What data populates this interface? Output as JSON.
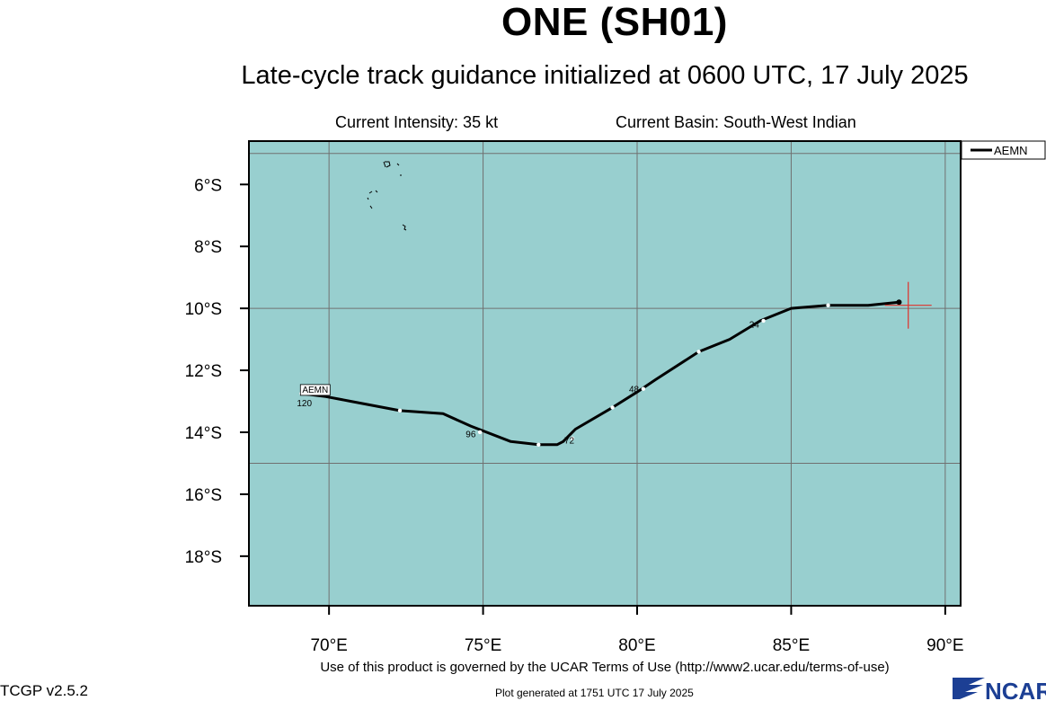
{
  "header": {
    "title": "ONE (SH01)",
    "subtitle": "Late-cycle track guidance initialized at 0600 UTC, 17 July 2025",
    "intensity": "Current Intensity: 35 kt",
    "basin": "Current Basin: South-West Indian"
  },
  "footer": {
    "terms": "Use of this product is governed by the UCAR Terms of Use (http://www2.ucar.edu/terms-of-use)",
    "version": "TCGP v2.5.2",
    "generated": "Plot generated at 1751 UTC   17 July 2025",
    "logo_text": "NCAR"
  },
  "colors": {
    "ocean": "#98cfcf",
    "grid": "#707070",
    "track": "#000000",
    "current_position": "#e0302a",
    "land_outline": "#000000",
    "logo": "#1c3f94"
  },
  "chart_data": {
    "type": "line",
    "xlim": [
      67.4,
      90.5
    ],
    "ylim": [
      -19.6,
      -4.6
    ],
    "x_ticks": [
      {
        "value": 70,
        "label": "70°E"
      },
      {
        "value": 75,
        "label": "75°E"
      },
      {
        "value": 80,
        "label": "80°E"
      },
      {
        "value": 85,
        "label": "85°E"
      },
      {
        "value": 90,
        "label": "90°E"
      }
    ],
    "y_ticks": [
      {
        "value": -6,
        "label": "6°S"
      },
      {
        "value": -8,
        "label": "8°S"
      },
      {
        "value": -10,
        "label": "10°S"
      },
      {
        "value": -12,
        "label": "12°S"
      },
      {
        "value": -14,
        "label": "14°S"
      },
      {
        "value": -16,
        "label": "16°S"
      },
      {
        "value": -18,
        "label": "18°S"
      }
    ],
    "grid_lon": [
      70,
      75,
      80,
      85,
      90
    ],
    "grid_lat": [
      -5,
      -10,
      -15
    ],
    "legend": {
      "position": "top-right",
      "entries": [
        "AEMN"
      ]
    },
    "series": [
      {
        "name": "AEMN",
        "points": [
          {
            "lon": 88.5,
            "lat": -9.8
          },
          {
            "lon": 87.5,
            "lat": -9.9
          },
          {
            "lon": 86.2,
            "lat": -9.9
          },
          {
            "lon": 85.0,
            "lat": -10.0
          },
          {
            "lon": 84.0,
            "lat": -10.4
          },
          {
            "lon": 83.0,
            "lat": -11.0
          },
          {
            "lon": 82.0,
            "lat": -11.4
          },
          {
            "lon": 80.6,
            "lat": -12.3
          },
          {
            "lon": 80.0,
            "lat": -12.7
          },
          {
            "lon": 79.2,
            "lat": -13.2
          },
          {
            "lon": 78.0,
            "lat": -13.9
          },
          {
            "lon": 77.6,
            "lat": -14.3
          },
          {
            "lon": 77.4,
            "lat": -14.4
          },
          {
            "lon": 76.8,
            "lat": -14.4
          },
          {
            "lon": 75.9,
            "lat": -14.3
          },
          {
            "lon": 74.6,
            "lat": -13.8
          },
          {
            "lon": 73.7,
            "lat": -13.4
          },
          {
            "lon": 72.3,
            "lat": -13.3
          },
          {
            "lon": 70.7,
            "lat": -13.0
          },
          {
            "lon": 69.9,
            "lat": -12.85
          },
          {
            "lon": 69.1,
            "lat": -12.75
          }
        ],
        "markers": [
          {
            "lon": 86.2,
            "lat": -9.9
          },
          {
            "lon": 84.1,
            "lat": -10.4
          },
          {
            "lon": 82.0,
            "lat": -11.4
          },
          {
            "lon": 80.2,
            "lat": -12.6
          },
          {
            "lon": 79.2,
            "lat": -13.2
          },
          {
            "lon": 77.9,
            "lat": -14.2
          },
          {
            "lon": 76.8,
            "lat": -14.4
          },
          {
            "lon": 74.9,
            "lat": -14.0
          },
          {
            "lon": 72.3,
            "lat": -13.3
          },
          {
            "lon": 69.1,
            "lat": -12.75
          }
        ],
        "start_label": "AEMN",
        "hour_labels": [
          {
            "text": "24",
            "lon": 83.8,
            "lat": -10.5
          },
          {
            "text": "48",
            "lon": 79.9,
            "lat": -12.6
          },
          {
            "text": "72",
            "lon": 77.8,
            "lat": -14.25
          },
          {
            "text": "96",
            "lon": 74.6,
            "lat": -14.05
          },
          {
            "text": "120",
            "lon": 69.2,
            "lat": -13.05
          }
        ]
      }
    ],
    "current_position": {
      "lon": 88.8,
      "lat": -9.9
    }
  }
}
